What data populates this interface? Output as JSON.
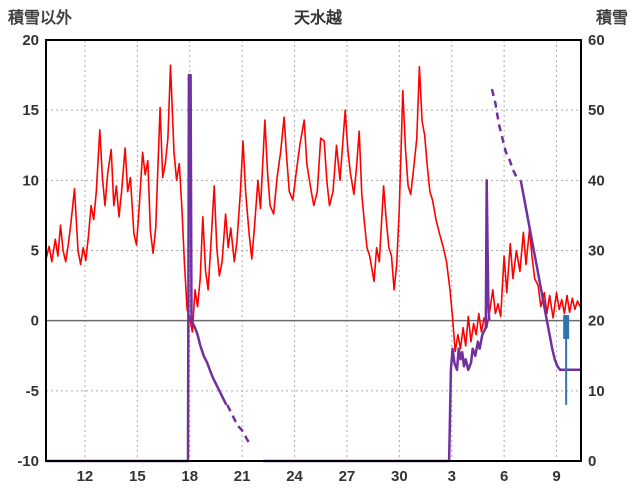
{
  "header": {
    "left_axis_title": "積雪以外",
    "title": "天水越",
    "right_axis_title": "積雪"
  },
  "chart_data": {
    "type": "line",
    "title": "天水越",
    "left_axis": {
      "label": "積雪以外",
      "min": -10,
      "max": 20,
      "ticks": [
        20,
        15,
        10,
        5,
        0,
        -5,
        -10
      ]
    },
    "right_axis": {
      "label": "積雪",
      "min": 0,
      "max": 60,
      "ticks": [
        60,
        50,
        40,
        30,
        20,
        10,
        0
      ]
    },
    "x_axis": {
      "min": 9.77,
      "max": 40.4,
      "ticks": [
        {
          "v": 12,
          "label": "12"
        },
        {
          "v": 15,
          "label": "15"
        },
        {
          "v": 18,
          "label": "18"
        },
        {
          "v": 21,
          "label": "21"
        },
        {
          "v": 24,
          "label": "24"
        },
        {
          "v": 27,
          "label": "27"
        },
        {
          "v": 30,
          "label": "30"
        },
        {
          "v": 33,
          "label": "3"
        },
        {
          "v": 36,
          "label": "6"
        },
        {
          "v": 39,
          "label": "9"
        }
      ]
    },
    "grid": {
      "h_dashed_left_values": [
        15,
        10,
        5,
        -5
      ],
      "zero_line_left_value": 0,
      "grid_color": "#aaaaaa",
      "zero_color": "#6d6d6d",
      "border_color": "#000000"
    },
    "series": [
      {
        "name": "temperature-line",
        "color": "#ff0000",
        "axis": "left",
        "style": "solid",
        "width": 1.6,
        "points": [
          [
            9.8,
            4.5
          ],
          [
            9.95,
            5.3
          ],
          [
            10.1,
            4.2
          ],
          [
            10.3,
            5.8
          ],
          [
            10.45,
            4.6
          ],
          [
            10.6,
            6.8
          ],
          [
            10.75,
            5.0
          ],
          [
            10.9,
            4.2
          ],
          [
            11.05,
            5.5
          ],
          [
            11.2,
            7.0
          ],
          [
            11.4,
            9.4
          ],
          [
            11.6,
            5.0
          ],
          [
            11.75,
            4.0
          ],
          [
            11.9,
            5.2
          ],
          [
            12.05,
            4.3
          ],
          [
            12.2,
            6.0
          ],
          [
            12.35,
            8.2
          ],
          [
            12.5,
            7.2
          ],
          [
            12.65,
            9.2
          ],
          [
            12.85,
            13.6
          ],
          [
            13.0,
            10.2
          ],
          [
            13.15,
            8.2
          ],
          [
            13.3,
            10.5
          ],
          [
            13.5,
            12.2
          ],
          [
            13.65,
            8.2
          ],
          [
            13.8,
            9.6
          ],
          [
            13.95,
            7.4
          ],
          [
            14.1,
            9.2
          ],
          [
            14.3,
            12.3
          ],
          [
            14.45,
            9.2
          ],
          [
            14.6,
            10.2
          ],
          [
            14.8,
            6.2
          ],
          [
            14.95,
            5.4
          ],
          [
            15.1,
            8.0
          ],
          [
            15.3,
            12.0
          ],
          [
            15.45,
            10.4
          ],
          [
            15.6,
            11.4
          ],
          [
            15.75,
            6.4
          ],
          [
            15.9,
            4.8
          ],
          [
            16.05,
            6.6
          ],
          [
            16.3,
            15.2
          ],
          [
            16.45,
            10.2
          ],
          [
            16.6,
            11.2
          ],
          [
            16.75,
            13.0
          ],
          [
            16.9,
            18.2
          ],
          [
            17.1,
            12.0
          ],
          [
            17.25,
            10.0
          ],
          [
            17.4,
            11.2
          ],
          [
            17.55,
            8.0
          ],
          [
            17.7,
            4.0
          ],
          [
            17.85,
            0.8
          ],
          [
            18.0,
            0.2
          ],
          [
            18.15,
            -0.8
          ],
          [
            18.3,
            2.2
          ],
          [
            18.45,
            1.0
          ],
          [
            18.6,
            3.0
          ],
          [
            18.75,
            7.4
          ],
          [
            18.9,
            3.6
          ],
          [
            19.05,
            2.2
          ],
          [
            19.2,
            5.2
          ],
          [
            19.4,
            9.6
          ],
          [
            19.55,
            5.2
          ],
          [
            19.7,
            3.2
          ],
          [
            19.85,
            4.2
          ],
          [
            20.05,
            7.6
          ],
          [
            20.2,
            5.2
          ],
          [
            20.35,
            6.6
          ],
          [
            20.55,
            4.2
          ],
          [
            20.7,
            5.6
          ],
          [
            20.9,
            9.2
          ],
          [
            21.05,
            12.8
          ],
          [
            21.2,
            9.2
          ],
          [
            21.4,
            6.2
          ],
          [
            21.55,
            4.4
          ],
          [
            21.7,
            6.6
          ],
          [
            21.9,
            10.0
          ],
          [
            22.05,
            8.0
          ],
          [
            22.3,
            14.3
          ],
          [
            22.45,
            10.6
          ],
          [
            22.6,
            8.2
          ],
          [
            22.8,
            7.6
          ],
          [
            23.0,
            10.2
          ],
          [
            23.2,
            12.0
          ],
          [
            23.4,
            14.5
          ],
          [
            23.55,
            11.6
          ],
          [
            23.7,
            9.2
          ],
          [
            23.9,
            8.6
          ],
          [
            24.1,
            10.6
          ],
          [
            24.3,
            12.5
          ],
          [
            24.55,
            14.3
          ],
          [
            24.7,
            11.2
          ],
          [
            24.9,
            9.6
          ],
          [
            25.1,
            8.2
          ],
          [
            25.3,
            9.2
          ],
          [
            25.5,
            13.0
          ],
          [
            25.7,
            12.8
          ],
          [
            25.85,
            9.9
          ],
          [
            26.0,
            8.2
          ],
          [
            26.2,
            9.2
          ],
          [
            26.4,
            12.5
          ],
          [
            26.6,
            10.0
          ],
          [
            26.9,
            15.0
          ],
          [
            27.05,
            12.2
          ],
          [
            27.2,
            10.5
          ],
          [
            27.4,
            9.0
          ],
          [
            27.55,
            11.0
          ],
          [
            27.7,
            13.5
          ],
          [
            27.85,
            9.0
          ],
          [
            28.0,
            7.0
          ],
          [
            28.15,
            5.2
          ],
          [
            28.3,
            4.6
          ],
          [
            28.55,
            2.8
          ],
          [
            28.7,
            5.2
          ],
          [
            28.85,
            4.2
          ],
          [
            29.1,
            9.6
          ],
          [
            29.25,
            7.2
          ],
          [
            29.4,
            5.2
          ],
          [
            29.55,
            4.6
          ],
          [
            29.7,
            2.2
          ],
          [
            29.85,
            4.0
          ],
          [
            30.0,
            8.0
          ],
          [
            30.2,
            16.4
          ],
          [
            30.35,
            12.2
          ],
          [
            30.5,
            9.6
          ],
          [
            30.65,
            9.0
          ],
          [
            30.8,
            10.6
          ],
          [
            31.0,
            13.0
          ],
          [
            31.15,
            18.1
          ],
          [
            31.3,
            14.2
          ],
          [
            31.45,
            13.2
          ],
          [
            31.6,
            11.0
          ],
          [
            31.75,
            9.2
          ],
          [
            31.9,
            8.6
          ],
          [
            32.1,
            7.2
          ],
          [
            32.3,
            6.2
          ],
          [
            32.5,
            5.3
          ],
          [
            32.7,
            4.2
          ],
          [
            32.9,
            2.2
          ],
          [
            33.05,
            0.2
          ],
          [
            33.2,
            -2.2
          ],
          [
            33.35,
            -1.0
          ],
          [
            33.5,
            -2.0
          ],
          [
            33.65,
            -0.5
          ],
          [
            33.8,
            -1.8
          ],
          [
            33.95,
            0.3
          ],
          [
            34.1,
            -1.5
          ],
          [
            34.25,
            -0.2
          ],
          [
            34.4,
            -1.0
          ],
          [
            34.55,
            0.5
          ],
          [
            34.7,
            -0.8
          ],
          [
            34.85,
            0.2
          ],
          [
            35.0,
            -0.5
          ],
          [
            35.15,
            0.5
          ],
          [
            35.35,
            2.2
          ],
          [
            35.5,
            0.5
          ],
          [
            35.65,
            1.2
          ],
          [
            35.8,
            0.3
          ],
          [
            36.0,
            4.6
          ],
          [
            36.15,
            2.0
          ],
          [
            36.35,
            5.5
          ],
          [
            36.5,
            3.0
          ],
          [
            36.7,
            5.0
          ],
          [
            36.9,
            3.5
          ],
          [
            37.1,
            6.3
          ],
          [
            37.25,
            4.0
          ],
          [
            37.45,
            6.5
          ],
          [
            37.6,
            4.5
          ],
          [
            37.75,
            3.0
          ],
          [
            37.95,
            2.5
          ],
          [
            38.1,
            1.0
          ],
          [
            38.3,
            2.0
          ],
          [
            38.45,
            0.5
          ],
          [
            38.6,
            1.8
          ],
          [
            38.8,
            0.2
          ],
          [
            39.0,
            2.0
          ],
          [
            39.15,
            0.8
          ],
          [
            39.3,
            1.5
          ],
          [
            39.45,
            0.5
          ],
          [
            39.6,
            1.8
          ],
          [
            39.75,
            0.6
          ],
          [
            39.9,
            1.6
          ],
          [
            40.05,
            0.8
          ],
          [
            40.2,
            1.4
          ],
          [
            40.35,
            1.0
          ]
        ]
      },
      {
        "name": "snow-depth-line",
        "color": "#7030a0",
        "axis": "right",
        "width": 2.5,
        "segments": [
          {
            "style": "solid",
            "points": [
              [
                9.8,
                0
              ],
              [
                17.9,
                0
              ],
              [
                17.95,
                55
              ],
              [
                18.05,
                55
              ],
              [
                18.1,
                20
              ],
              [
                18.3,
                19
              ],
              [
                18.45,
                18
              ],
              [
                18.6,
                16.5
              ],
              [
                18.8,
                15
              ],
              [
                19.0,
                14
              ],
              [
                19.15,
                13
              ],
              [
                19.3,
                12
              ],
              [
                19.5,
                11
              ],
              [
                19.7,
                10
              ],
              [
                19.9,
                9
              ],
              [
                20.1,
                8
              ]
            ]
          },
          {
            "style": "dashed",
            "points": [
              [
                20.15,
                8
              ],
              [
                20.35,
                7
              ],
              [
                20.55,
                6
              ],
              [
                20.75,
                5
              ],
              [
                20.95,
                4.5
              ],
              [
                21.1,
                4
              ],
              [
                21.25,
                3.2
              ],
              [
                21.4,
                2.6
              ],
              [
                21.55,
                2.4
              ]
            ]
          },
          {
            "style": "solid",
            "points": [
              [
                22.2,
                0
              ],
              [
                32.85,
                0
              ],
              [
                32.95,
                13
              ],
              [
                33.05,
                16
              ],
              [
                33.15,
                14
              ],
              [
                33.3,
                13
              ],
              [
                33.4,
                16
              ],
              [
                33.5,
                14.5
              ],
              [
                33.6,
                15.5
              ],
              [
                33.7,
                13.5
              ],
              [
                33.8,
                14.5
              ],
              [
                33.95,
                13
              ],
              [
                34.1,
                14
              ],
              [
                34.2,
                16
              ],
              [
                34.35,
                15
              ],
              [
                34.5,
                17
              ],
              [
                34.6,
                16
              ],
              [
                34.75,
                18
              ],
              [
                34.95,
                19
              ],
              [
                35.0,
                40
              ],
              [
                35.05,
                30
              ],
              [
                35.1,
                22
              ],
              [
                35.15,
                20
              ]
            ]
          },
          {
            "style": "dashed",
            "points": [
              [
                35.3,
                53
              ],
              [
                35.5,
                51
              ],
              [
                35.7,
                48
              ],
              [
                35.9,
                46
              ],
              [
                36.1,
                44
              ],
              [
                36.3,
                43
              ],
              [
                36.5,
                41.5
              ],
              [
                36.7,
                40.5
              ],
              [
                36.9,
                40
              ]
            ]
          },
          {
            "style": "solid",
            "points": [
              [
                36.95,
                40
              ],
              [
                37.1,
                38
              ],
              [
                37.25,
                36
              ],
              [
                37.4,
                34
              ],
              [
                37.55,
                32
              ],
              [
                37.7,
                30
              ],
              [
                37.85,
                28
              ],
              [
                38.0,
                26
              ],
              [
                38.15,
                24
              ],
              [
                38.3,
                22
              ],
              [
                38.45,
                20
              ],
              [
                38.6,
                18
              ],
              [
                38.75,
                16
              ],
              [
                38.9,
                14.5
              ],
              [
                39.05,
                13.5
              ],
              [
                39.2,
                13
              ],
              [
                39.5,
                13
              ],
              [
                39.8,
                13
              ],
              [
                40.1,
                13
              ],
              [
                40.38,
                13
              ]
            ]
          }
        ]
      },
      {
        "name": "precipitation-bars",
        "color": "#2e75b6",
        "axis": "left",
        "bars": [
          {
            "x": 39.55,
            "y0": -6.0,
            "y1": 0.4,
            "w": 2
          },
          {
            "x": 39.55,
            "y0": -1.3,
            "y1": 0.4,
            "w": 6
          }
        ]
      }
    ]
  }
}
